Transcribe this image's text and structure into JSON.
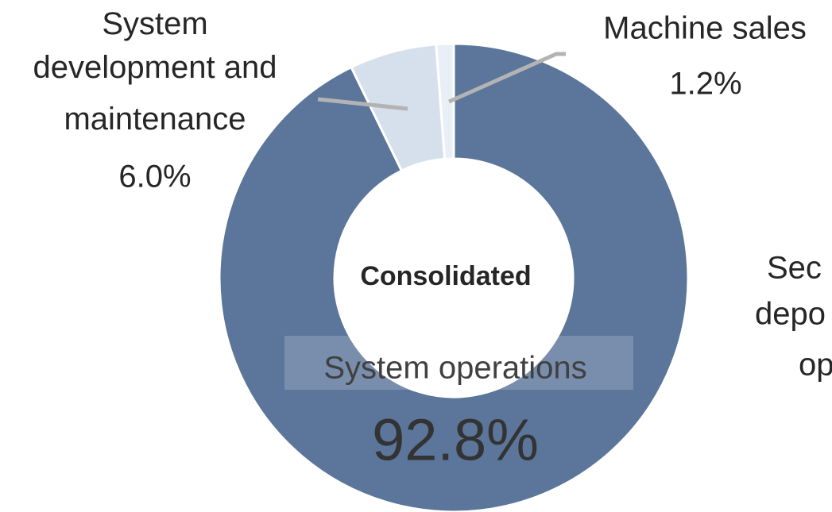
{
  "chart_data": {
    "type": "pie",
    "donut": true,
    "center_label": "Consolidated",
    "categories": [
      "System operations",
      "System development and maintenance",
      "Machine sales"
    ],
    "values": [
      92.8,
      6.0,
      1.2
    ],
    "value_labels": [
      "92.8%",
      "6.0%",
      "1.2%"
    ],
    "colors": [
      "#5b769a",
      "#d6e0ec",
      "#e9eff6"
    ],
    "annotations": [
      "Sec",
      "depo",
      "op"
    ]
  }
}
